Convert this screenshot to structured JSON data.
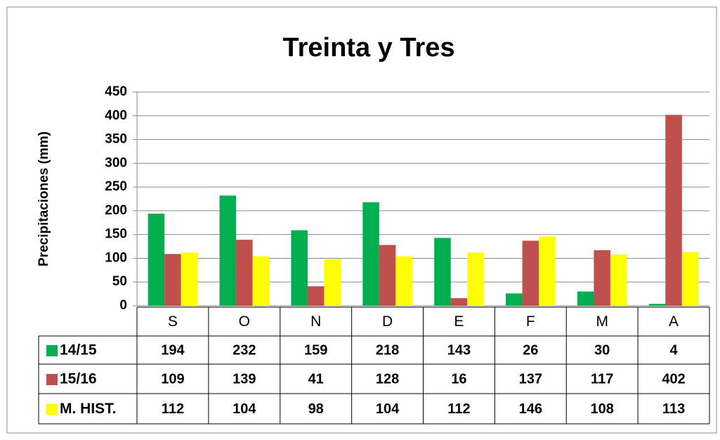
{
  "chart_data": {
    "type": "bar",
    "title": "Treinta y Tres",
    "y_label": "Precipitaciones (mm)",
    "categories": [
      "S",
      "O",
      "N",
      "D",
      "E",
      "F",
      "M",
      "A"
    ],
    "series": [
      {
        "name": "14/15",
        "color": "#00b050",
        "values": [
          194,
          232,
          159,
          218,
          143,
          26,
          30,
          4
        ]
      },
      {
        "name": "15/16",
        "color": "#c0504d",
        "values": [
          109,
          139,
          41,
          128,
          16,
          137,
          117,
          402
        ]
      },
      {
        "name": "M. HIST.",
        "color": "#ffff00",
        "values": [
          112,
          104,
          98,
          104,
          112,
          146,
          108,
          113
        ]
      }
    ],
    "ylim": [
      0,
      450
    ],
    "yticks": [
      0,
      50,
      100,
      150,
      200,
      250,
      300,
      350,
      400,
      450
    ],
    "grid": true,
    "data_table": true
  }
}
